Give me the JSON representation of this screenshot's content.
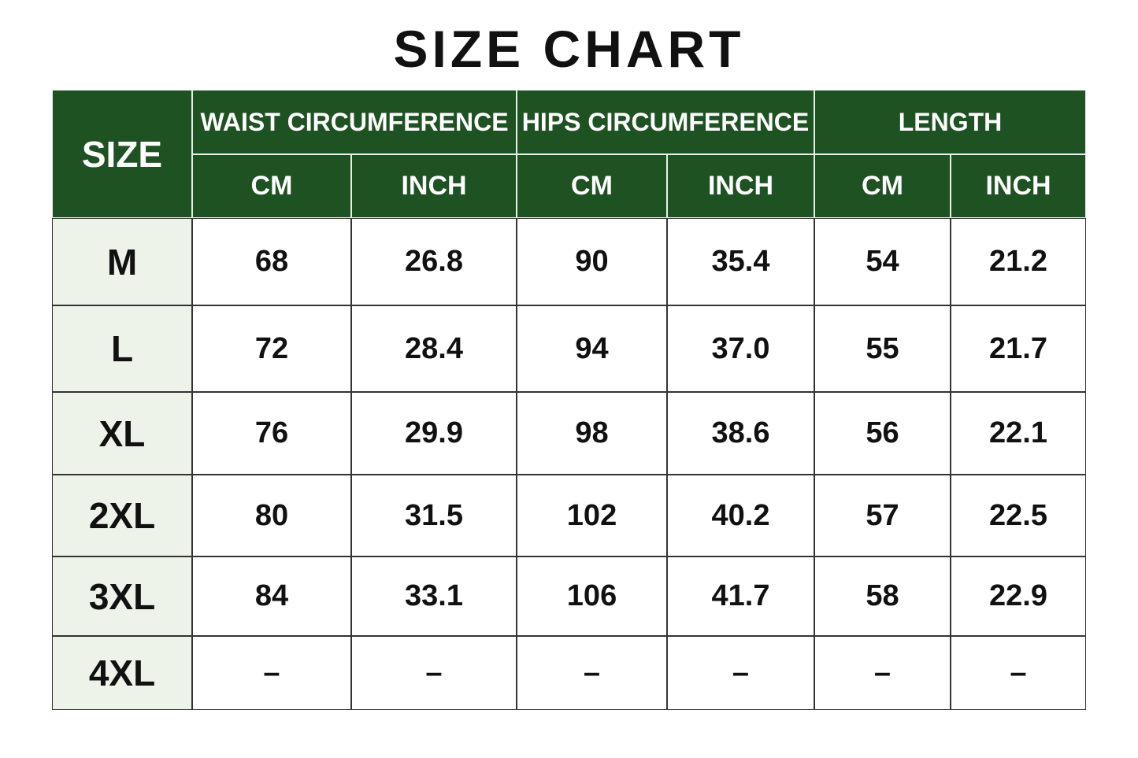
{
  "title": "SIZE CHART",
  "table": {
    "size_header": "SIZE",
    "groups": [
      {
        "label": "WAIST CIRCUMFERENCE",
        "units": [
          "CM",
          "INCH"
        ]
      },
      {
        "label": "HIPS CIRCUMFERENCE",
        "units": [
          "CM",
          "INCH"
        ]
      },
      {
        "label": "LENGTH",
        "units": [
          "CM",
          "INCH"
        ]
      }
    ],
    "rows": [
      {
        "size": "M",
        "cells": [
          "68",
          "26.8",
          "90",
          "35.4",
          "54",
          "21.2"
        ]
      },
      {
        "size": "L",
        "cells": [
          "72",
          "28.4",
          "94",
          "37.0",
          "55",
          "21.7"
        ]
      },
      {
        "size": "XL",
        "cells": [
          "76",
          "29.9",
          "98",
          "38.6",
          "56",
          "22.1"
        ]
      },
      {
        "size": "2XL",
        "cells": [
          "80",
          "31.5",
          "102",
          "40.2",
          "57",
          "22.5"
        ]
      },
      {
        "size": "3XL",
        "cells": [
          "84",
          "33.1",
          "106",
          "41.7",
          "58",
          "22.9"
        ]
      },
      {
        "size": "4XL",
        "cells": [
          "–",
          "–",
          "–",
          "–",
          "–",
          "–"
        ]
      }
    ]
  }
}
